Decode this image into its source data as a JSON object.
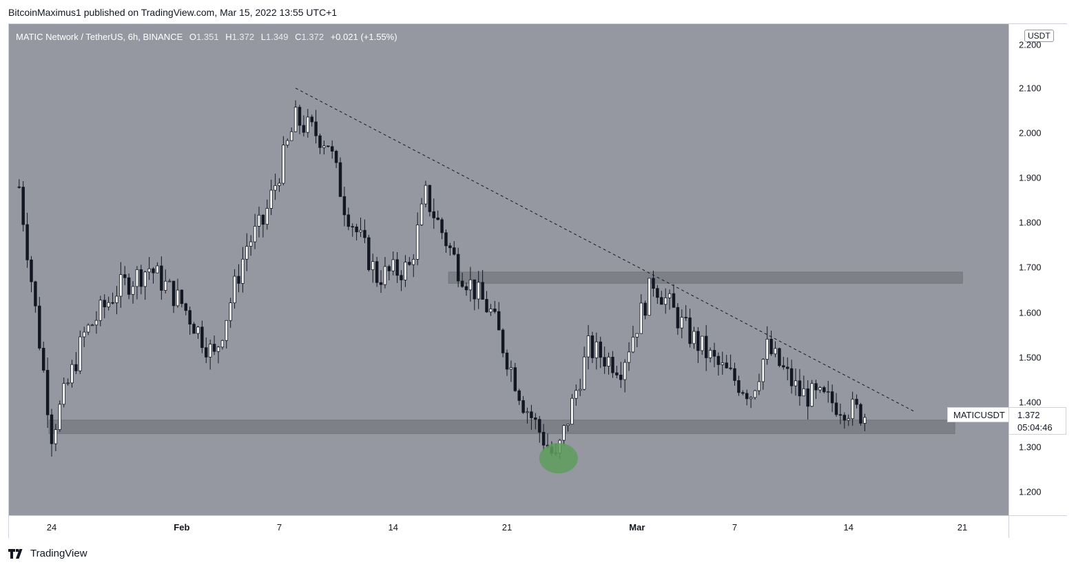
{
  "publisher": {
    "text": "BitcoinMaximus1 published on TradingView.com, Mar 15, 2022 13:55 UTC+1"
  },
  "legend": {
    "symbol": "MATIC Network / TetherUS, 6h, BINANCE",
    "o_label": "O",
    "o": "1.351",
    "h_label": "H",
    "h": "1.372",
    "l_label": "L",
    "l": "1.349",
    "c_label": "C",
    "c": "1.372",
    "change": "+0.021 (+1.55%)"
  },
  "axis": {
    "currency": "USDT",
    "price_ticks": [
      "2.200",
      "2.100",
      "2.000",
      "1.900",
      "1.800",
      "1.700",
      "1.600",
      "1.500",
      "1.400",
      "1.300",
      "1.200"
    ],
    "time_ticks": [
      {
        "label": "24",
        "bold": false
      },
      {
        "label": "Feb",
        "bold": true
      },
      {
        "label": "7",
        "bold": false
      },
      {
        "label": "14",
        "bold": false
      },
      {
        "label": "21",
        "bold": false
      },
      {
        "label": "Mar",
        "bold": true
      },
      {
        "label": "7",
        "bold": false
      },
      {
        "label": "14",
        "bold": false
      },
      {
        "label": "21",
        "bold": false
      }
    ]
  },
  "last_price": {
    "symbol": "MATICUSDT",
    "price": "1.372",
    "countdown": "05:04:46"
  },
  "brand": {
    "name": "TradingView"
  },
  "colors": {
    "plot_bg": "#9598a1",
    "bull": "#ffffff",
    "bear": "#131722",
    "zone": "#7a7c83",
    "highlight": "#5e9c5a"
  },
  "chart_data": {
    "type": "candlestick",
    "timeframe": "6h",
    "ylim": [
      1.15,
      2.25
    ],
    "xlim": [
      "2022-01-22",
      "2022-03-22"
    ],
    "candles_approx_close": [
      {
        "date": "2022-01-22",
        "close": 1.88
      },
      {
        "date": "2022-01-24",
        "close": 1.33
      },
      {
        "date": "2022-01-26",
        "close": 1.55
      },
      {
        "date": "2022-01-28",
        "close": 1.65
      },
      {
        "date": "2022-01-30",
        "close": 1.7
      },
      {
        "date": "2022-02-01",
        "close": 1.62
      },
      {
        "date": "2022-02-03",
        "close": 1.5
      },
      {
        "date": "2022-02-05",
        "close": 1.75
      },
      {
        "date": "2022-02-06",
        "close": 1.8
      },
      {
        "date": "2022-02-08",
        "close": 2.03
      },
      {
        "date": "2022-02-10",
        "close": 1.98
      },
      {
        "date": "2022-02-11",
        "close": 1.84
      },
      {
        "date": "2022-02-13",
        "close": 1.68
      },
      {
        "date": "2022-02-15",
        "close": 1.7
      },
      {
        "date": "2022-02-16",
        "close": 1.86
      },
      {
        "date": "2022-02-18",
        "close": 1.7
      },
      {
        "date": "2022-02-20",
        "close": 1.6
      },
      {
        "date": "2022-02-22",
        "close": 1.4
      },
      {
        "date": "2022-02-24",
        "close": 1.27
      },
      {
        "date": "2022-02-26",
        "close": 1.52
      },
      {
        "date": "2022-02-28",
        "close": 1.48
      },
      {
        "date": "2022-03-02",
        "close": 1.67
      },
      {
        "date": "2022-03-04",
        "close": 1.56
      },
      {
        "date": "2022-03-06",
        "close": 1.48
      },
      {
        "date": "2022-03-08",
        "close": 1.42
      },
      {
        "date": "2022-03-09",
        "close": 1.52
      },
      {
        "date": "2022-03-11",
        "close": 1.42
      },
      {
        "date": "2022-03-13",
        "close": 1.4
      },
      {
        "date": "2022-03-15",
        "close": 1.372
      }
    ],
    "support_zone": [
      1.33,
      1.36
    ],
    "resistance_zone": [
      1.665,
      1.69
    ],
    "descending_trendline": {
      "from": {
        "date": "2022-02-08",
        "price": 2.1
      },
      "to": {
        "date": "2022-03-18",
        "price": 1.38
      }
    },
    "highlight": {
      "date": "2022-02-24",
      "price": 1.275
    }
  }
}
